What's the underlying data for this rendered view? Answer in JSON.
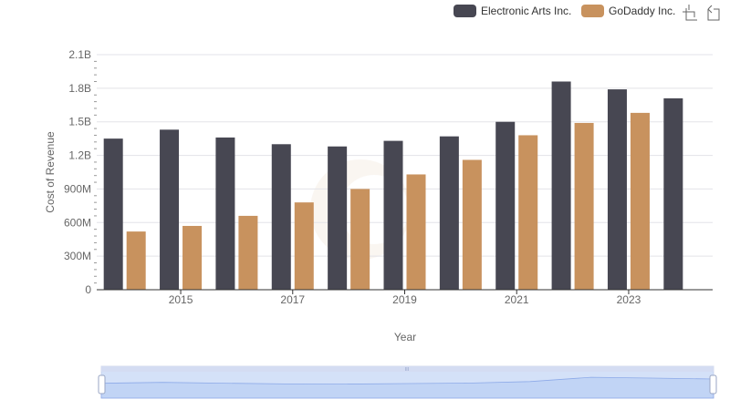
{
  "chart_data": {
    "type": "bar",
    "xlabel": "Year",
    "ylabel": "Cost of Revenue",
    "ylim": [
      0,
      2100000000
    ],
    "y_ticks": [
      {
        "value": 0,
        "label": "0"
      },
      {
        "value": 300000000,
        "label": "300M"
      },
      {
        "value": 600000000,
        "label": "600M"
      },
      {
        "value": 900000000,
        "label": "900M"
      },
      {
        "value": 1200000000,
        "label": "1.2B"
      },
      {
        "value": 1500000000,
        "label": "1.5B"
      },
      {
        "value": 1800000000,
        "label": "1.8B"
      },
      {
        "value": 2100000000,
        "label": "2.1B"
      }
    ],
    "categories": [
      "2014",
      "2015",
      "2016",
      "2017",
      "2018",
      "2019",
      "2020",
      "2021",
      "2022",
      "2023",
      "2024"
    ],
    "x_tick_labels": [
      "2015",
      "2017",
      "2019",
      "2021",
      "2023"
    ],
    "grid": true,
    "legend_position": "top-right",
    "series": [
      {
        "name": "Electronic Arts Inc.",
        "color": "#474752",
        "values": [
          1350000000,
          1430000000,
          1360000000,
          1300000000,
          1280000000,
          1330000000,
          1370000000,
          1500000000,
          1860000000,
          1790000000,
          1710000000
        ]
      },
      {
        "name": "GoDaddy Inc.",
        "color": "#c8925e",
        "values": [
          520000000,
          570000000,
          660000000,
          780000000,
          900000000,
          1030000000,
          1160000000,
          1380000000,
          1490000000,
          1580000000,
          null
        ]
      }
    ],
    "data_zoom": {
      "start_percent": 0,
      "end_percent": 100,
      "handle_label": "III"
    }
  },
  "toolbox": {
    "zoom_icon": "zoom-icon",
    "restore_icon": "restore-icon"
  }
}
